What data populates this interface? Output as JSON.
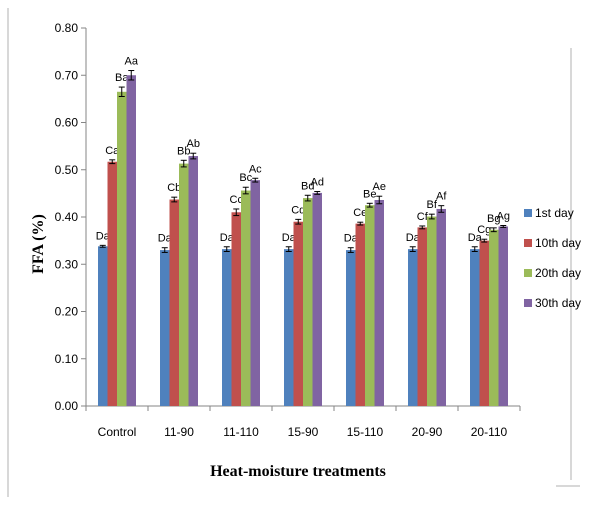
{
  "chart_data": {
    "type": "bar",
    "title": "",
    "xlabel": "Heat-moisture treatments",
    "ylabel": "FFA (%)",
    "ylim": [
      0,
      0.8
    ],
    "yticks": [
      "0.00",
      "0.10",
      "0.20",
      "0.30",
      "0.40",
      "0.50",
      "0.60",
      "0.70",
      "0.80"
    ],
    "categories": [
      "Control",
      "11-90",
      "11-110",
      "15-90",
      "15-110",
      "20-90",
      "20-110"
    ],
    "grid": false,
    "legend_position": "right",
    "series": [
      {
        "name": "1st day",
        "color": "#4f81bd",
        "values": [
          0.338,
          0.33,
          0.332,
          0.332,
          0.33,
          0.332,
          0.332
        ],
        "errors": [
          0.002,
          0.005,
          0.005,
          0.005,
          0.005,
          0.005,
          0.005
        ],
        "labels": [
          "Da",
          "Da",
          "Da",
          "Da",
          "Da",
          "Da",
          "Da"
        ]
      },
      {
        "name": "10th day",
        "color": "#c0504d",
        "values": [
          0.517,
          0.437,
          0.41,
          0.39,
          0.386,
          0.378,
          0.35
        ],
        "errors": [
          0.004,
          0.005,
          0.007,
          0.005,
          0.003,
          0.003,
          0.003
        ],
        "labels": [
          "Ca",
          "Cb",
          "Cc",
          "Cd",
          "Ce",
          "Cf",
          "Cg"
        ]
      },
      {
        "name": "20th day",
        "color": "#9bbb59",
        "values": [
          0.665,
          0.513,
          0.456,
          0.44,
          0.425,
          0.401,
          0.373
        ],
        "errors": [
          0.01,
          0.007,
          0.007,
          0.006,
          0.004,
          0.005,
          0.004
        ],
        "labels": [
          "Ba",
          "Bb",
          "Bc",
          "Bd",
          "Be",
          "Bf",
          "Bg"
        ]
      },
      {
        "name": "30th day",
        "color": "#8064a2",
        "values": [
          0.7,
          0.529,
          0.478,
          0.451,
          0.436,
          0.417,
          0.38
        ],
        "errors": [
          0.01,
          0.006,
          0.004,
          0.003,
          0.008,
          0.007,
          0.002
        ],
        "labels": [
          "Aa",
          "Ab",
          "Ac",
          "Ad",
          "Ae",
          "Af",
          "Ag"
        ]
      }
    ]
  }
}
